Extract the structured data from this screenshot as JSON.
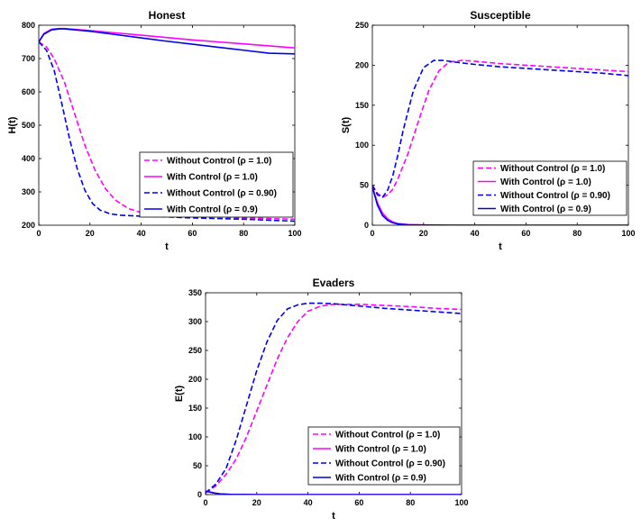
{
  "chart_data": [
    {
      "type": "line",
      "title": "Honest",
      "xlabel": "t",
      "ylabel": "H(t)",
      "xlim": [
        0,
        100
      ],
      "ylim": [
        200,
        800
      ],
      "xticks": [
        0,
        20,
        40,
        60,
        80,
        100
      ],
      "yticks": [
        200,
        300,
        400,
        500,
        600,
        700,
        800
      ],
      "legend_position": "bottom-right",
      "series": [
        {
          "name": "Without Control (ρ = 1.0)",
          "color": "#ff00ff",
          "dash": "dashed",
          "x": [
            0,
            3,
            6,
            10,
            14,
            18,
            22,
            26,
            30,
            35,
            40,
            50,
            60,
            70,
            80,
            90,
            100
          ],
          "y": [
            750,
            735,
            700,
            630,
            535,
            440,
            365,
            310,
            275,
            250,
            238,
            231,
            228,
            225,
            222,
            220,
            218
          ]
        },
        {
          "name": "With Control (ρ = 1.0)",
          "color": "#ff00ff",
          "dash": "solid",
          "x": [
            0,
            2,
            5,
            8,
            10,
            20,
            30,
            40,
            50,
            60,
            70,
            80,
            90,
            100
          ],
          "y": [
            750,
            775,
            788,
            790,
            790,
            784,
            777,
            770,
            763,
            756,
            750,
            744,
            738,
            732
          ]
        },
        {
          "name": "Without Control (ρ = 0.90)",
          "color": "#0000ee",
          "dash": "dashed",
          "x": [
            0,
            3,
            6,
            9,
            12,
            15,
            18,
            21,
            24,
            28,
            32,
            40,
            50,
            60,
            70,
            80,
            90,
            100
          ],
          "y": [
            750,
            725,
            665,
            565,
            460,
            370,
            305,
            265,
            245,
            234,
            230,
            227,
            225,
            222,
            220,
            218,
            215,
            212
          ]
        },
        {
          "name": "With Control (ρ = 0.9)",
          "color": "#0000ee",
          "dash": "solid",
          "x": [
            0,
            2,
            5,
            8,
            10,
            20,
            30,
            40,
            50,
            60,
            70,
            80,
            90,
            100
          ],
          "y": [
            750,
            773,
            786,
            789,
            789,
            782,
            772,
            762,
            752,
            743,
            734,
            725,
            716,
            714
          ]
        }
      ]
    },
    {
      "type": "line",
      "title": "Susceptible",
      "xlabel": "t",
      "ylabel": "S(t)",
      "xlim": [
        0,
        100
      ],
      "ylim": [
        0,
        250
      ],
      "xticks": [
        0,
        20,
        40,
        60,
        80,
        100
      ],
      "yticks": [
        0,
        50,
        100,
        150,
        200,
        250
      ],
      "legend_position": "bottom-right",
      "series": [
        {
          "name": "Without Control (ρ = 1.0)",
          "color": "#ff00ff",
          "dash": "dashed",
          "x": [
            0,
            2,
            4,
            6,
            8,
            10,
            14,
            18,
            22,
            26,
            30,
            35,
            40,
            50,
            60,
            70,
            80,
            90,
            100
          ],
          "y": [
            50,
            40,
            35,
            38,
            45,
            58,
            90,
            130,
            168,
            193,
            204,
            206,
            205,
            202,
            200,
            198,
            196,
            194,
            192
          ]
        },
        {
          "name": "With Control (ρ = 1.0)",
          "color": "#ff00ff",
          "dash": "solid",
          "x": [
            0,
            2,
            4,
            6,
            8,
            10,
            14,
            20,
            30,
            50,
            100
          ],
          "y": [
            48,
            28,
            15,
            8,
            4,
            2,
            0.8,
            0.3,
            0.1,
            0,
            0
          ]
        },
        {
          "name": "Without Control (ρ = 0.90)",
          "color": "#0000ee",
          "dash": "dashed",
          "x": [
            0,
            2,
            4,
            6,
            8,
            10,
            12,
            16,
            20,
            24,
            28,
            32,
            40,
            50,
            60,
            70,
            80,
            90,
            100
          ],
          "y": [
            50,
            38,
            35,
            44,
            62,
            88,
            118,
            168,
            197,
            206,
            206,
            204,
            201,
            198,
            196,
            194,
            192,
            190,
            187
          ]
        },
        {
          "name": "With Control (ρ = 0.9)",
          "color": "#0000ee",
          "dash": "solid",
          "x": [
            0,
            2,
            4,
            6,
            8,
            10,
            14,
            20,
            30,
            50,
            100
          ],
          "y": [
            48,
            25,
            12,
            6,
            3,
            1.5,
            0.5,
            0.2,
            0,
            0,
            0
          ]
        }
      ]
    },
    {
      "type": "line",
      "title": "Evaders",
      "xlabel": "t",
      "ylabel": "E(t)",
      "xlim": [
        0,
        100
      ],
      "ylim": [
        0,
        350
      ],
      "xticks": [
        0,
        20,
        40,
        60,
        80,
        100
      ],
      "yticks": [
        0,
        50,
        100,
        150,
        200,
        250,
        300,
        350
      ],
      "legend_position": "bottom-right",
      "series": [
        {
          "name": "Without Control (ρ = 1.0)",
          "color": "#ff00ff",
          "dash": "dashed",
          "x": [
            0,
            4,
            8,
            12,
            16,
            20,
            24,
            28,
            32,
            36,
            40,
            45,
            50,
            55,
            60,
            70,
            80,
            90,
            100
          ],
          "y": [
            3,
            15,
            35,
            62,
            100,
            145,
            190,
            235,
            272,
            300,
            318,
            327,
            330,
            330,
            330,
            328,
            326,
            323,
            321
          ]
        },
        {
          "name": "With Control (ρ = 1.0)",
          "color": "#ff00ff",
          "dash": "solid",
          "x": [
            0,
            1,
            3,
            6,
            10,
            20,
            100
          ],
          "y": [
            6,
            5,
            3,
            1,
            0.3,
            0,
            0
          ]
        },
        {
          "name": "Without Control (ρ = 0.90)",
          "color": "#0000ee",
          "dash": "dashed",
          "x": [
            0,
            4,
            8,
            12,
            16,
            20,
            24,
            28,
            32,
            36,
            40,
            45,
            50,
            60,
            70,
            80,
            90,
            100
          ],
          "y": [
            3,
            18,
            45,
            95,
            155,
            215,
            265,
            302,
            322,
            329,
            332,
            332,
            331,
            327,
            323,
            320,
            317,
            314
          ]
        },
        {
          "name": "With Control (ρ = 0.9)",
          "color": "#0000ee",
          "dash": "solid",
          "x": [
            0,
            1,
            3,
            6,
            10,
            20,
            100
          ],
          "y": [
            6,
            5,
            3,
            1,
            0.3,
            0,
            0
          ]
        }
      ]
    }
  ]
}
